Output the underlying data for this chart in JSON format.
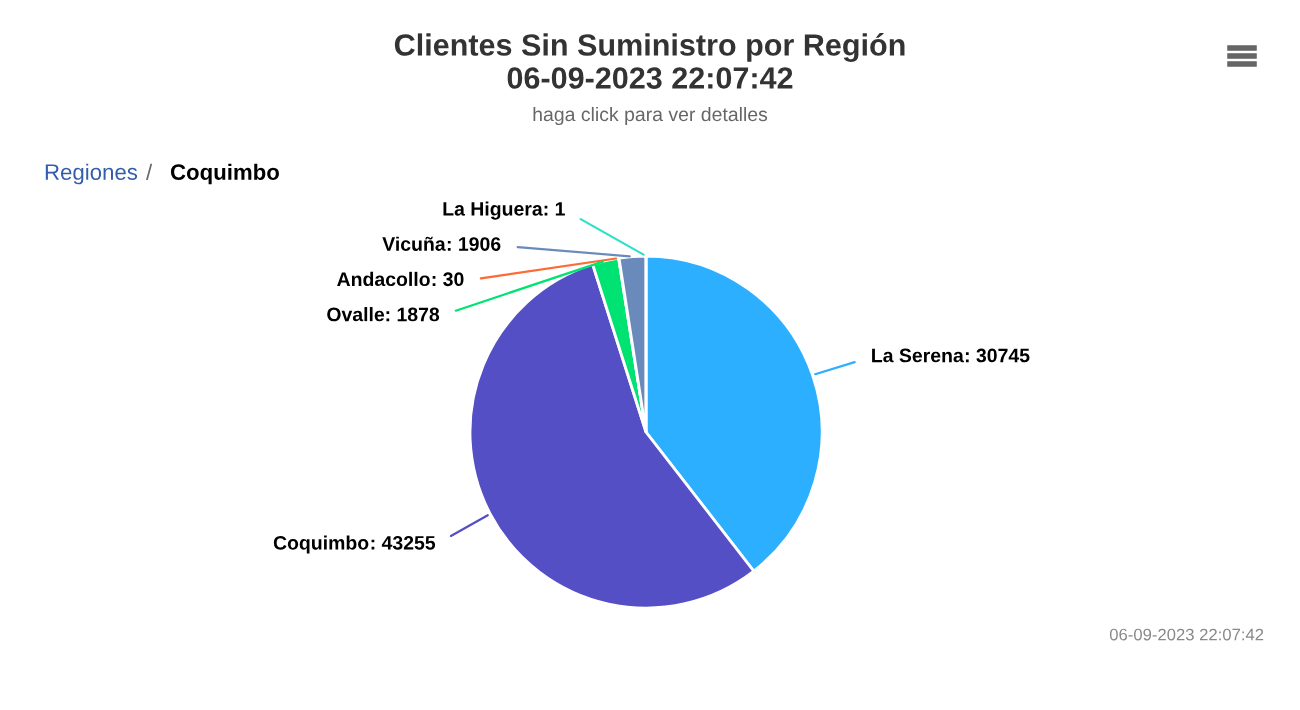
{
  "chart_data": {
    "type": "pie",
    "title": "Clientes Sin Suministro por Región\n06-09-2023 22:07:42",
    "subtitle": "haga click para ver detalles",
    "categories": [
      "La Serena",
      "Coquimbo",
      "Ovalle",
      "Andacollo",
      "Vicuña",
      "La Higuera"
    ],
    "values": [
      30745,
      43255,
      1878,
      30,
      1906,
      1
    ],
    "colors": [
      "#2caffe",
      "#544fc5",
      "#00e272",
      "#fe6a35",
      "#6b8abc",
      "#2ee0ca"
    ],
    "value_labels": [
      ": 30745",
      ": 43255",
      ": 1878",
      ": 30",
      ": 1906",
      ": 1"
    ],
    "annotations": [
      "Regiones",
      "/",
      "Coquimbo",
      "06-09-2023 22:07:42"
    ]
  }
}
